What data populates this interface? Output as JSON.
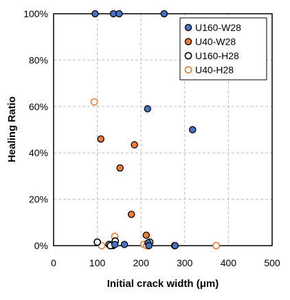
{
  "chart_data": {
    "type": "scatter",
    "title": "",
    "xlabel": "Initial crack width (μm)",
    "ylabel": "Healing Ratio",
    "xlim": [
      0,
      500
    ],
    "ylim": [
      0,
      1
    ],
    "x_ticks": [
      "0",
      "100",
      "200",
      "300",
      "400",
      "500"
    ],
    "y_ticks": [
      "0%",
      "20%",
      "40%",
      "60%",
      "80%",
      "100%"
    ],
    "grid": "dashed",
    "legend_position": "top-right",
    "series": [
      {
        "name": "U160-W28",
        "marker": "filled-circle",
        "color": "#4472C4",
        "points": [
          [
            95,
            1.0
          ],
          [
            137,
            1.0
          ],
          [
            150,
            1.0
          ],
          [
            253,
            1.0
          ],
          [
            215,
            0.59
          ],
          [
            318,
            0.5
          ],
          [
            140,
            0.005
          ],
          [
            162,
            0.005
          ],
          [
            216,
            0.012
          ],
          [
            218,
            0.0
          ],
          [
            278,
            0.0
          ]
        ]
      },
      {
        "name": "U40-W28",
        "marker": "filled-circle",
        "color": "#ED7D31",
        "points": [
          [
            108,
            0.46
          ],
          [
            185,
            0.435
          ],
          [
            152,
            0.335
          ],
          [
            178,
            0.135
          ],
          [
            212,
            0.045
          ],
          [
            136,
            0.0
          ],
          [
            210,
            0.005
          ],
          [
            277,
            0.0
          ]
        ]
      },
      {
        "name": "U160-H28",
        "marker": "open-circle",
        "color": "#000000",
        "points": [
          [
            100,
            0.015
          ],
          [
            127,
            0.005
          ],
          [
            130,
            0.0
          ],
          [
            141,
            0.02
          ],
          [
            220,
            0.015
          ]
        ]
      },
      {
        "name": "U40-H28",
        "marker": "open-circle",
        "color": "#ED7D31",
        "points": [
          [
            93,
            0.62
          ],
          [
            110,
            0.0
          ],
          [
            140,
            0.04
          ],
          [
            207,
            0.005
          ],
          [
            213,
            0.0
          ],
          [
            372,
            0.0
          ]
        ]
      }
    ]
  }
}
